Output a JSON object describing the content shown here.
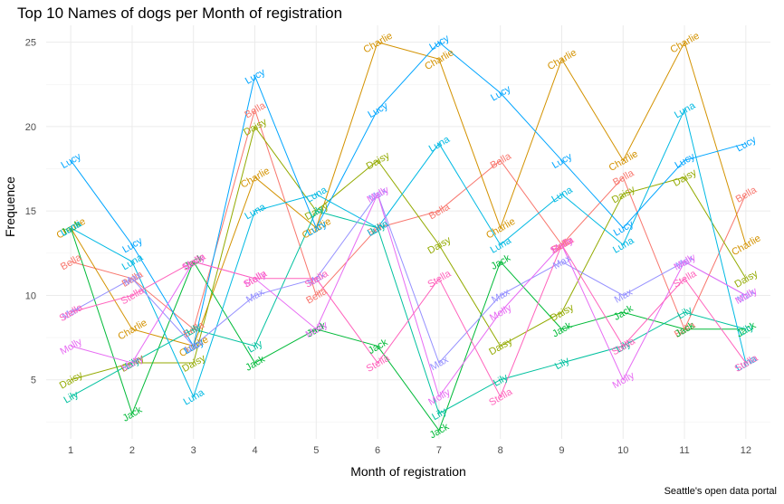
{
  "chart_data": {
    "type": "line",
    "title": "Top 10 Names of dogs per Month of registration",
    "xlabel": "Month of registration",
    "ylabel": "Frequence",
    "caption": "Seattle's open data portal",
    "x": [
      1,
      2,
      3,
      4,
      5,
      6,
      7,
      8,
      9,
      10,
      11,
      12
    ],
    "xlim": [
      0.6,
      12.4
    ],
    "ylim": [
      1.5,
      26
    ],
    "y_ticks": [
      5,
      10,
      15,
      20,
      25
    ],
    "grid": true,
    "legend": "none",
    "series": [
      {
        "name": "Bella",
        "color": "#F8766D",
        "values": [
          12,
          11,
          8,
          21,
          10,
          14,
          15,
          18,
          13,
          17,
          8,
          16
        ]
      },
      {
        "name": "Charlie",
        "color": "#D39200",
        "values": [
          14,
          8,
          7,
          17,
          14,
          25,
          24,
          14,
          24,
          18,
          25,
          13
        ]
      },
      {
        "name": "Daisy",
        "color": "#93AA00",
        "values": [
          5,
          6,
          6,
          20,
          15,
          18,
          13,
          7,
          9,
          16,
          17,
          11
        ]
      },
      {
        "name": "Jack",
        "color": "#00BA38",
        "values": [
          14,
          3,
          12,
          6,
          8,
          7,
          2,
          12,
          8,
          9,
          8,
          8
        ]
      },
      {
        "name": "Lily",
        "color": "#00C19F",
        "values": [
          4,
          6,
          8,
          7,
          15,
          14,
          3,
          5,
          6,
          7,
          9,
          8
        ]
      },
      {
        "name": "Luna",
        "color": "#00B9E3",
        "values": [
          14,
          12,
          4,
          15,
          16,
          14,
          19,
          13,
          16,
          13,
          21,
          6
        ]
      },
      {
        "name": "Lucy",
        "color": "#00A5FF",
        "values": [
          18,
          13,
          7,
          23,
          14,
          21,
          25,
          22,
          18,
          14,
          18,
          19
        ]
      },
      {
        "name": "Max",
        "color": "#9590FF",
        "values": [
          9,
          11,
          7,
          10,
          11,
          16,
          6,
          10,
          12,
          10,
          12,
          10
        ]
      },
      {
        "name": "Molly",
        "color": "#E76BF3",
        "values": [
          7,
          6,
          12,
          11,
          8,
          16,
          4,
          9,
          13,
          5,
          12,
          10
        ]
      },
      {
        "name": "Stella",
        "color": "#FF62BC",
        "values": [
          9,
          10,
          12,
          11,
          11,
          6,
          11,
          4,
          13,
          7,
          11,
          6
        ]
      }
    ]
  }
}
